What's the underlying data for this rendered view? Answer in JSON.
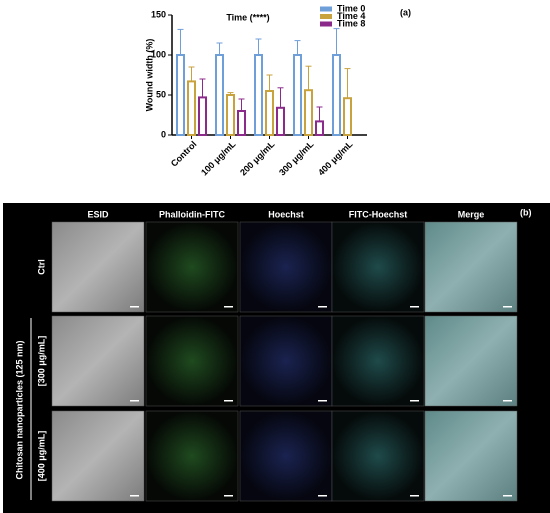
{
  "chart_data": {
    "type": "bar",
    "panel_label": "(a)",
    "annotation": "Time (****)",
    "y_label": "Wound width (%)",
    "categories": [
      "Control",
      "100 μg/mL",
      "200 μg/mL",
      "300 μg/mL",
      "400 μg/mL"
    ],
    "series": [
      {
        "name": "Time 0",
        "color": "#6f9fd8",
        "values": [
          100,
          100,
          100,
          100,
          100
        ],
        "errors": [
          32,
          15,
          20,
          18,
          33
        ]
      },
      {
        "name": "Time 4",
        "color": "#c8a23c",
        "values": [
          67,
          50,
          55,
          56,
          46
        ],
        "errors": [
          18,
          3,
          20,
          30,
          37
        ]
      },
      {
        "name": "Time 8",
        "color": "#8b2a8b",
        "values": [
          47,
          30,
          34,
          17,
          null
        ],
        "errors": [
          23,
          15,
          25,
          18,
          null
        ]
      }
    ],
    "ylim": [
      0,
      150
    ],
    "yticks": [
      0,
      50,
      100,
      150
    ],
    "grid": false,
    "legend": "top-right"
  },
  "panel_b": {
    "label": "(b)",
    "columns": [
      "ESID",
      "Phalloidin-FITC",
      "Hoechst",
      "FITC-Hoechst",
      "Merge"
    ],
    "rows": [
      "Ctrl",
      "[300 μg/mL]",
      "[400 μg/mL]"
    ],
    "group_label": "Chitosan nanoparticles (125 nm)"
  }
}
